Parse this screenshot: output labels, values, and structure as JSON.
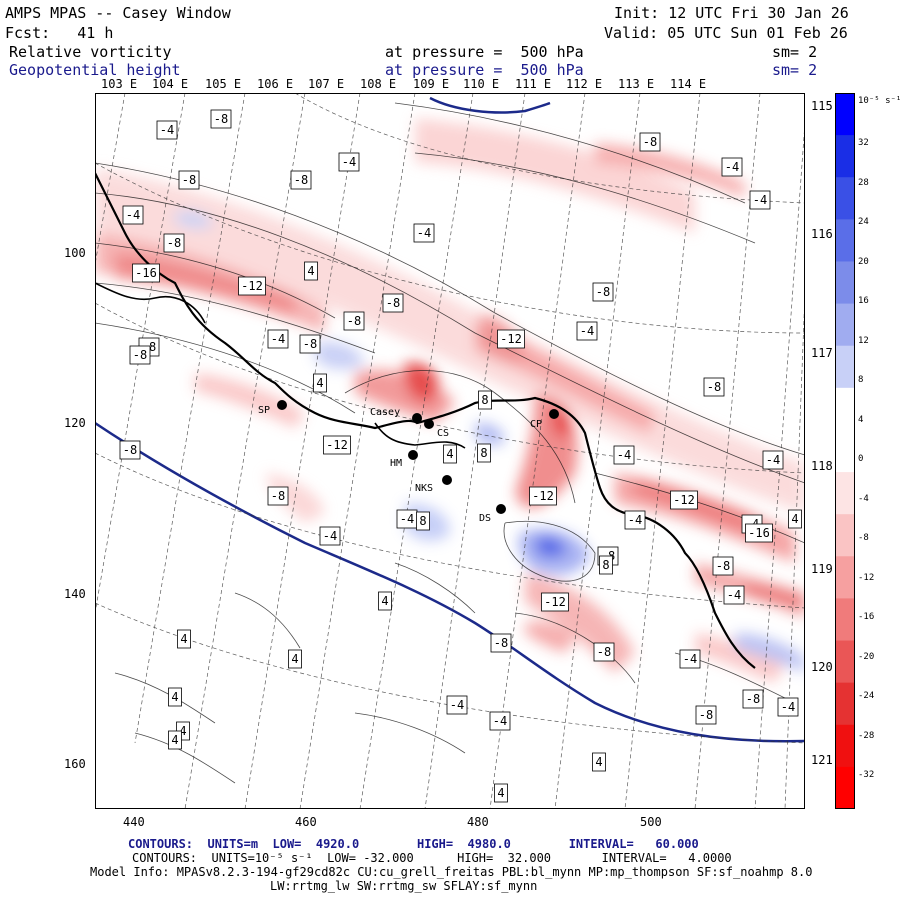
{
  "header": {
    "title": "AMPS MPAS -- Casey Window",
    "init": "Init: 12 UTC Fri 30 Jan 26",
    "fcst": "Fcst:   41 h",
    "valid": "Valid: 05 UTC Sun 01 Feb 26",
    "field1_name": "Relative vorticity",
    "field1_level": "at pressure =  500 hPa",
    "field1_sm": "sm= 2",
    "field2_name": "Geopotential height",
    "field2_level": "at pressure =  500 hPa",
    "field2_sm": "sm= 2"
  },
  "map": {
    "top_lon_labels": [
      "103 E",
      "104 E",
      "105 E",
      "106 E",
      "107 E",
      "108 E",
      "109 E",
      "110 E",
      "111 E",
      "112 E",
      "113 E",
      "114 E"
    ],
    "right_lon_labels": [
      "115 E",
      "116 E",
      "117 E",
      "118 E",
      "119 E",
      "120 E",
      "121 E"
    ],
    "x_ticks": [
      "440",
      "460",
      "480",
      "500"
    ],
    "y_ticks": [
      "100",
      "120",
      "140",
      "160"
    ],
    "stations": [
      {
        "code": "SP"
      },
      {
        "code": "Casey"
      },
      {
        "code": "CS"
      },
      {
        "code": "CP"
      },
      {
        "code": "HM"
      },
      {
        "code": "NKS"
      },
      {
        "code": "DS"
      }
    ],
    "contour_labels": [
      "-4",
      "-8",
      "-8",
      "-8",
      "-4",
      "-4",
      "-4",
      "-8",
      "-4",
      "-4",
      "-16",
      "-8",
      "4",
      "-12",
      "-8",
      "-8",
      "-8",
      "-4",
      "-8",
      "-12",
      "-8",
      "-8",
      "-8",
      "-4",
      "-8",
      "4",
      "8",
      "-4",
      "-4",
      "-12",
      "-8",
      "4",
      "8",
      "-4",
      "-12",
      "-4",
      "-4",
      "8",
      "-8",
      "-12",
      "4",
      "-4",
      "-16",
      "4",
      "-8",
      "-8",
      "8",
      "-12",
      "-4",
      "-8",
      "-8",
      "-4",
      "4",
      "-8",
      "4",
      "-4",
      "-4",
      "4",
      "-4",
      "4",
      "4",
      "4",
      "4"
    ]
  },
  "colorbar": {
    "unit": "10⁻⁵ s⁻¹",
    "labels": [
      "32",
      "28",
      "24",
      "20",
      "16",
      "12",
      "8",
      "4",
      "0",
      "-4",
      "-8",
      "-12",
      "-16",
      "-20",
      "-24",
      "-28",
      "-32"
    ],
    "colors": [
      "#0000ff",
      "#1a2ee6",
      "#3a50e6",
      "#5a6ee8",
      "#7c8cea",
      "#a0acf0",
      "#c8d0f7",
      "#ffffff",
      "#ffffff",
      "#fde4e4",
      "#fac4c4",
      "#f6a0a0",
      "#f07b7b",
      "#ea5656",
      "#e53232",
      "#f01010",
      "#ff0000"
    ]
  },
  "footer": {
    "line1": "CONTOURS:  UNITS=m  LOW=  4920.0        HIGH=  4980.0        INTERVAL=   60.000",
    "line2": "CONTOURS:  UNITS=10⁻⁵ s⁻¹  LOW= -32.000      HIGH=  32.000       INTERVAL=   4.0000",
    "line3": "Model Info: MPASv8.2.3-194-gf29cd82c CU:cu_grell_freitas PBL:bl_mynn MP:mp_thompson SF:sf_noahmp 8.0",
    "line4": "LW:rrtmg_lw SW:rrtmg_sw SFLAY:sf_mynn"
  }
}
